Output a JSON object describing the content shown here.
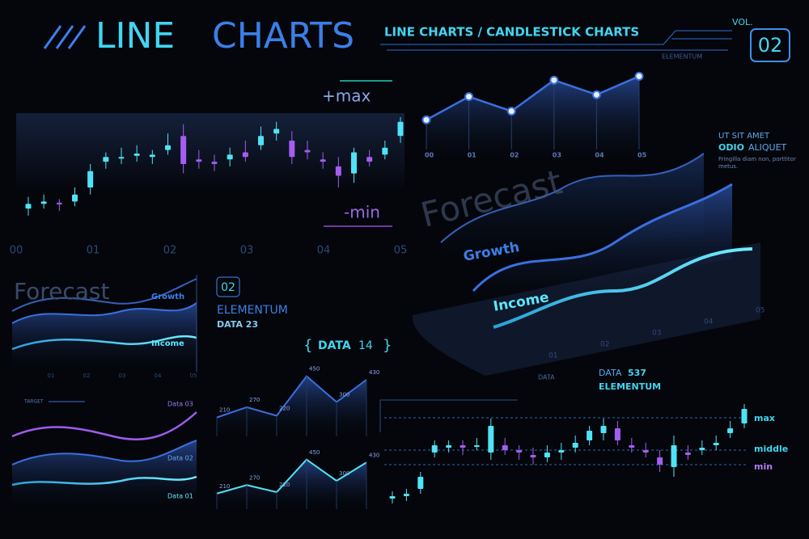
{
  "header": {
    "title_a": "LINE",
    "title_b": "CHARTS",
    "subtitle": "LINE CHARTS / CANDLESTICK CHARTS",
    "brand": "ELEMENTUM",
    "vol_label": "VOL.",
    "vol_number": "02"
  },
  "candles_top": {
    "type": "candlestick",
    "max_label": "+max",
    "min_label": "-min",
    "x_labels": [
      "00",
      "01",
      "02",
      "03",
      "04",
      "05"
    ],
    "ylim": [
      0,
      100
    ],
    "candles": [
      [
        22,
        26,
        32,
        16
      ],
      [
        26,
        28,
        34,
        22
      ],
      [
        27,
        26,
        30,
        20
      ],
      [
        28,
        34,
        40,
        24
      ],
      [
        40,
        54,
        60,
        34
      ],
      [
        62,
        66,
        70,
        56
      ],
      [
        66,
        66,
        74,
        60
      ],
      [
        67,
        69,
        76,
        62
      ],
      [
        66,
        68,
        72,
        60
      ],
      [
        72,
        76,
        86,
        68
      ],
      [
        84,
        60,
        94,
        52
      ],
      [
        64,
        62,
        72,
        56
      ],
      [
        62,
        60,
        68,
        54
      ],
      [
        64,
        68,
        74,
        58
      ],
      [
        70,
        66,
        80,
        62
      ],
      [
        76,
        84,
        92,
        72
      ],
      [
        86,
        90,
        96,
        80
      ],
      [
        80,
        66,
        88,
        60
      ],
      [
        72,
        70,
        80,
        64
      ],
      [
        64,
        62,
        70,
        56
      ],
      [
        58,
        50,
        66,
        40
      ],
      [
        52,
        70,
        74,
        44
      ],
      [
        66,
        62,
        72,
        58
      ],
      [
        68,
        74,
        80,
        64
      ],
      [
        84,
        96,
        100,
        78
      ]
    ]
  },
  "line_top": {
    "type": "line",
    "x_labels": [
      "00",
      "01",
      "02",
      "03",
      "04",
      "05"
    ],
    "values": [
      43,
      67,
      52,
      84,
      69,
      88
    ],
    "ylim": [
      0,
      100
    ]
  },
  "side_note": {
    "line1": "UT SIT AMET",
    "line2a": "ODIO",
    "line2b": "ALIQUET",
    "body_a": "Fringilla diam non, porttitor",
    "body_b": "metus."
  },
  "forecast_3d": {
    "title": "Forecast",
    "growth": "Growth",
    "income": "Income",
    "x_labels": [
      "01",
      "02",
      "03",
      "04",
      "05"
    ],
    "data_label": "DATA"
  },
  "forecast_small": {
    "title": "Forecast",
    "growth": "Growth",
    "income": "Income",
    "x_labels": [
      "01",
      "02",
      "03",
      "04",
      "05"
    ]
  },
  "info": {
    "number": "02",
    "brand": "ELEMENTUM",
    "data": "DATA 23"
  },
  "data14": {
    "label_a": "DATA",
    "label_b": "14"
  },
  "waves": {
    "target": "TARGET",
    "labels": [
      "Data 03",
      "Data 02",
      "Data 01"
    ]
  },
  "mini_charts": [
    {
      "type": "line",
      "values": [
        210,
        270,
        220,
        450,
        300,
        430
      ],
      "ylim": [
        100,
        500
      ]
    },
    {
      "type": "line",
      "values": [
        210,
        270,
        220,
        450,
        300,
        430
      ],
      "ylim": [
        100,
        500
      ]
    }
  ],
  "candles_bottom": {
    "type": "candlestick",
    "title_a": "DATA",
    "title_b": "537",
    "brand": "ELEMENTUM",
    "max": "max",
    "middle": "middle",
    "min": "min",
    "ylim": [
      0,
      100
    ],
    "candles": [
      [
        22,
        24,
        28,
        18
      ],
      [
        24,
        26,
        30,
        20
      ],
      [
        30,
        40,
        44,
        26
      ],
      [
        60,
        66,
        70,
        56
      ],
      [
        64,
        66,
        70,
        60
      ],
      [
        66,
        64,
        70,
        58
      ],
      [
        66,
        66,
        72,
        62
      ],
      [
        60,
        82,
        88,
        54
      ],
      [
        66,
        62,
        72,
        58
      ],
      [
        62,
        60,
        66,
        54
      ],
      [
        58,
        56,
        64,
        50
      ],
      [
        56,
        60,
        66,
        52
      ],
      [
        60,
        62,
        68,
        54
      ],
      [
        64,
        68,
        74,
        60
      ],
      [
        70,
        78,
        82,
        66
      ],
      [
        76,
        82,
        88,
        70
      ],
      [
        80,
        70,
        86,
        66
      ],
      [
        66,
        64,
        72,
        60
      ],
      [
        62,
        60,
        68,
        56
      ],
      [
        56,
        50,
        62,
        44
      ],
      [
        48,
        66,
        74,
        40
      ],
      [
        60,
        58,
        66,
        54
      ],
      [
        62,
        64,
        70,
        58
      ],
      [
        66,
        68,
        74,
        62
      ],
      [
        76,
        80,
        86,
        72
      ],
      [
        84,
        96,
        100,
        80
      ]
    ]
  }
}
